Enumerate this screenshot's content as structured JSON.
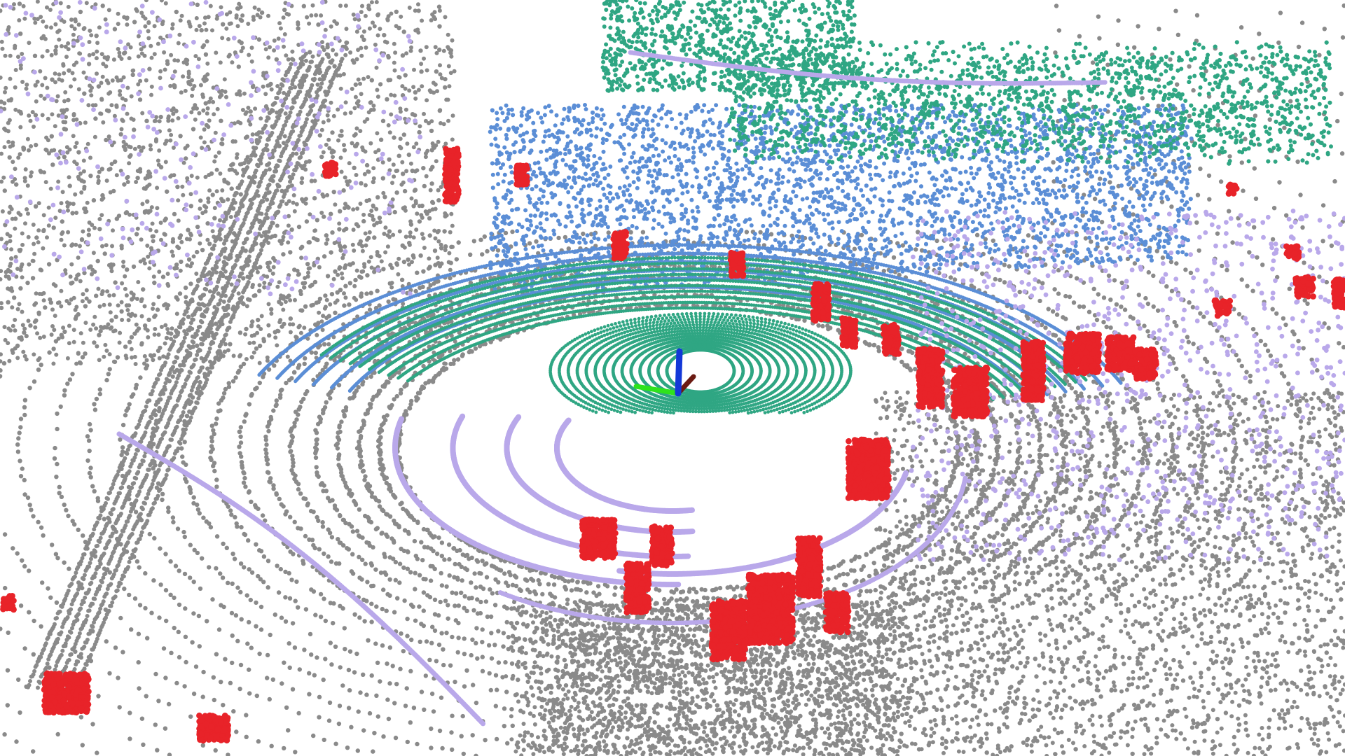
{
  "scene": {
    "background": "#ffffff",
    "classes": [
      {
        "id": "ground",
        "color": "#8a8a8a"
      },
      {
        "id": "road-marking",
        "color": "#b9a8ea"
      },
      {
        "id": "vegetation",
        "color": "#2fa683"
      },
      {
        "id": "building",
        "color": "#5b8ed6"
      },
      {
        "id": "pedestrian",
        "color": "#e82329"
      }
    ],
    "axes": {
      "x_color": "#6b1a12",
      "y_color": "#2ee31c",
      "z_color": "#1338d8"
    }
  }
}
